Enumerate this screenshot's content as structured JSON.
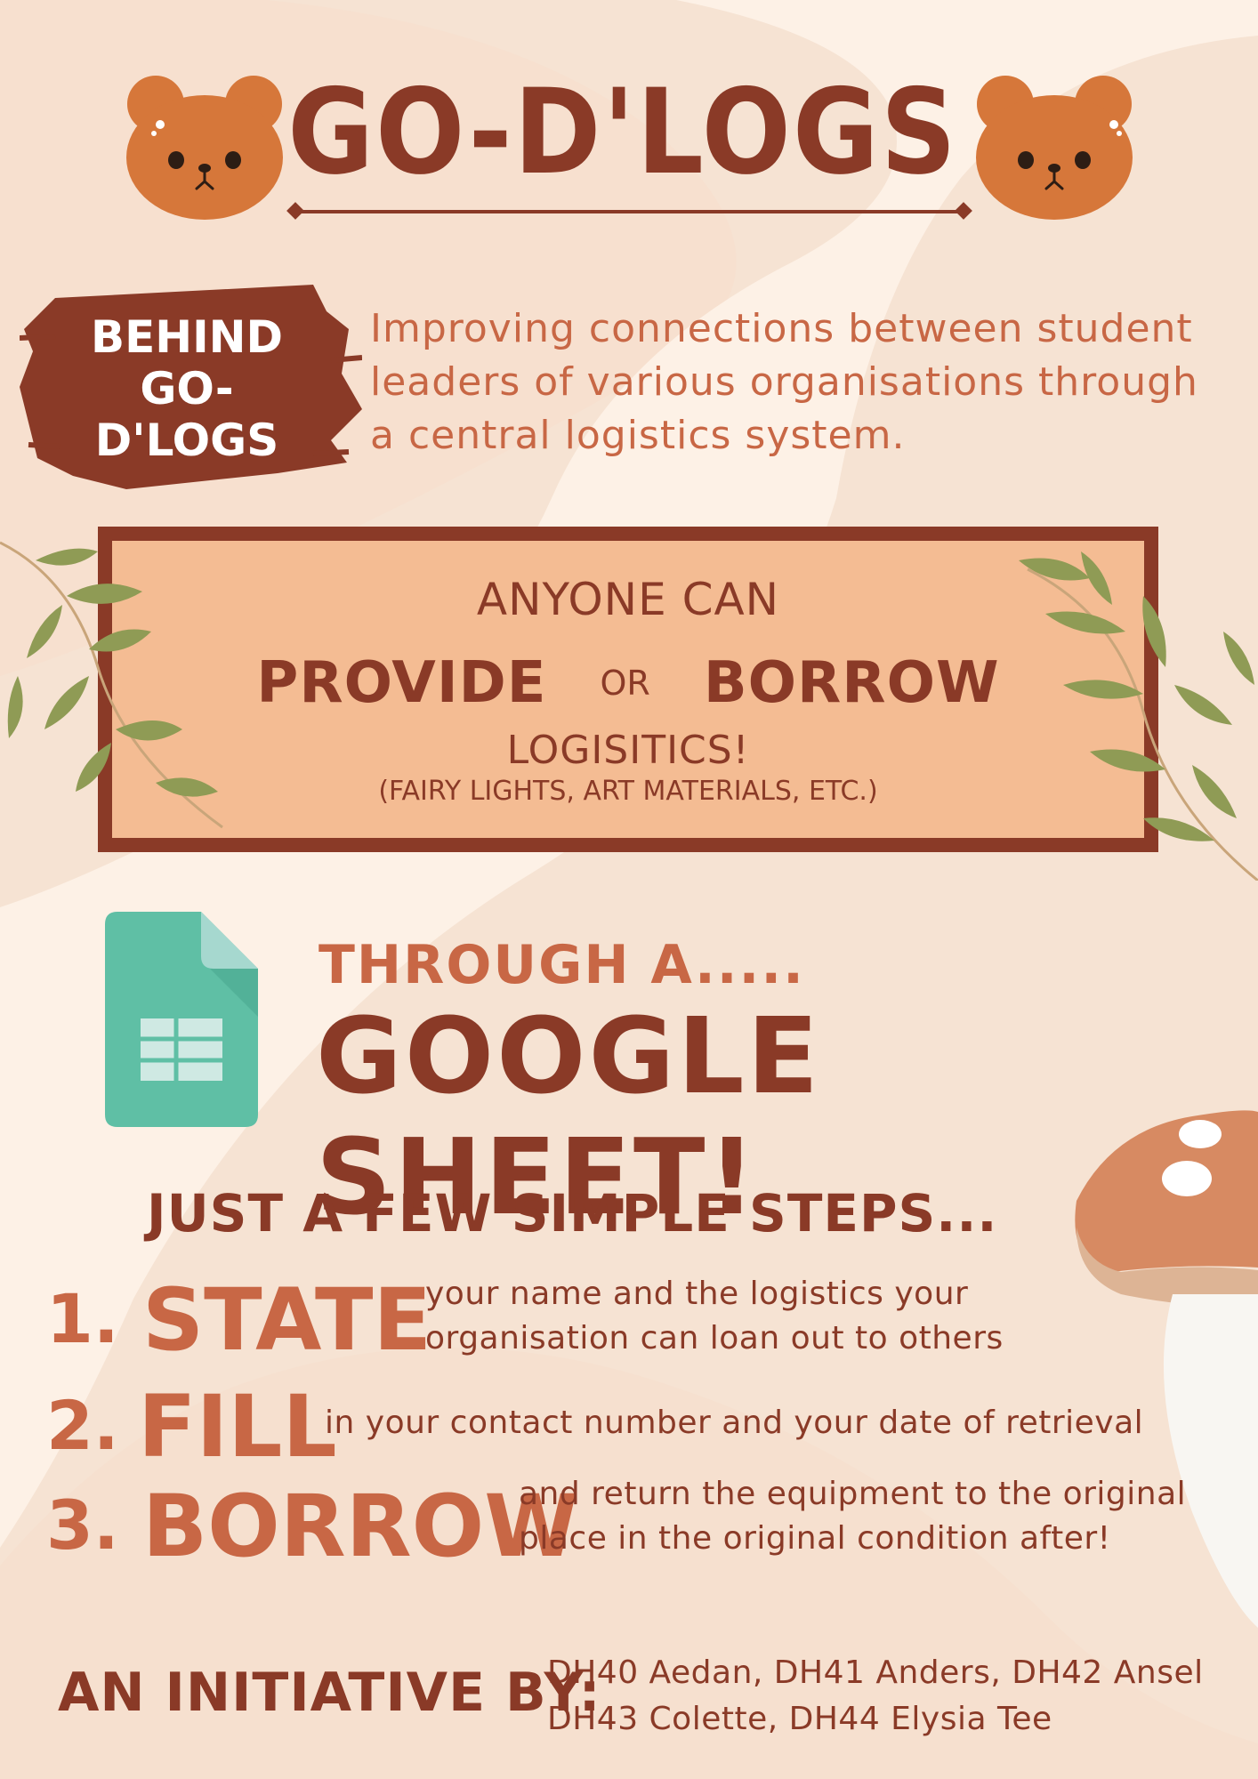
{
  "header": {
    "title": "GO-D'LOGS"
  },
  "behind": {
    "badge_text": "BEHIND GO-D'LOGS",
    "description": "Improving connections between student leaders of various organisations through a central logistics system."
  },
  "callout": {
    "line1": "ANYONE CAN",
    "provide": "PROVIDE",
    "or": "OR",
    "borrow": "BORROW",
    "line3": "LOGISITICS!",
    "line4": "(FAIRY LIGHTS, ART MATERIALS, ETC.)"
  },
  "sheet": {
    "through": "THROUGH A.....",
    "headline": "GOOGLE SHEET!"
  },
  "steps": {
    "heading": "JUST A FEW SIMPLE STEPS...",
    "items": [
      {
        "number": "1.",
        "word": "STATE",
        "text": "your name and the logistics your organisation can loan out to others"
      },
      {
        "number": "2.",
        "word": "FILL",
        "text": "in your contact number and your date of retrieval"
      },
      {
        "number": "3.",
        "word": "BORROW",
        "text": "and  return the equipment to the original place in the original condition after!"
      }
    ]
  },
  "footer": {
    "label": "AN INITIATIVE BY:",
    "names_line1": "DH40 Aedan, DH41 Anders, DH42 Ansel",
    "names_line2": "DH43 Colette, DH44 Elysia Tee"
  },
  "colors": {
    "dark_brown": "#8a3a27",
    "rust": "#c86745",
    "box_fill": "#f4bc93",
    "cream": "#fdf1e6",
    "bear": "#d6773a",
    "sheet_green": "#5fbfa5",
    "leaf": "#8f9b55"
  },
  "icons": [
    "bear-face-icon",
    "google-sheets-icon",
    "leaf-branch-icon",
    "mushroom-illustration"
  ]
}
